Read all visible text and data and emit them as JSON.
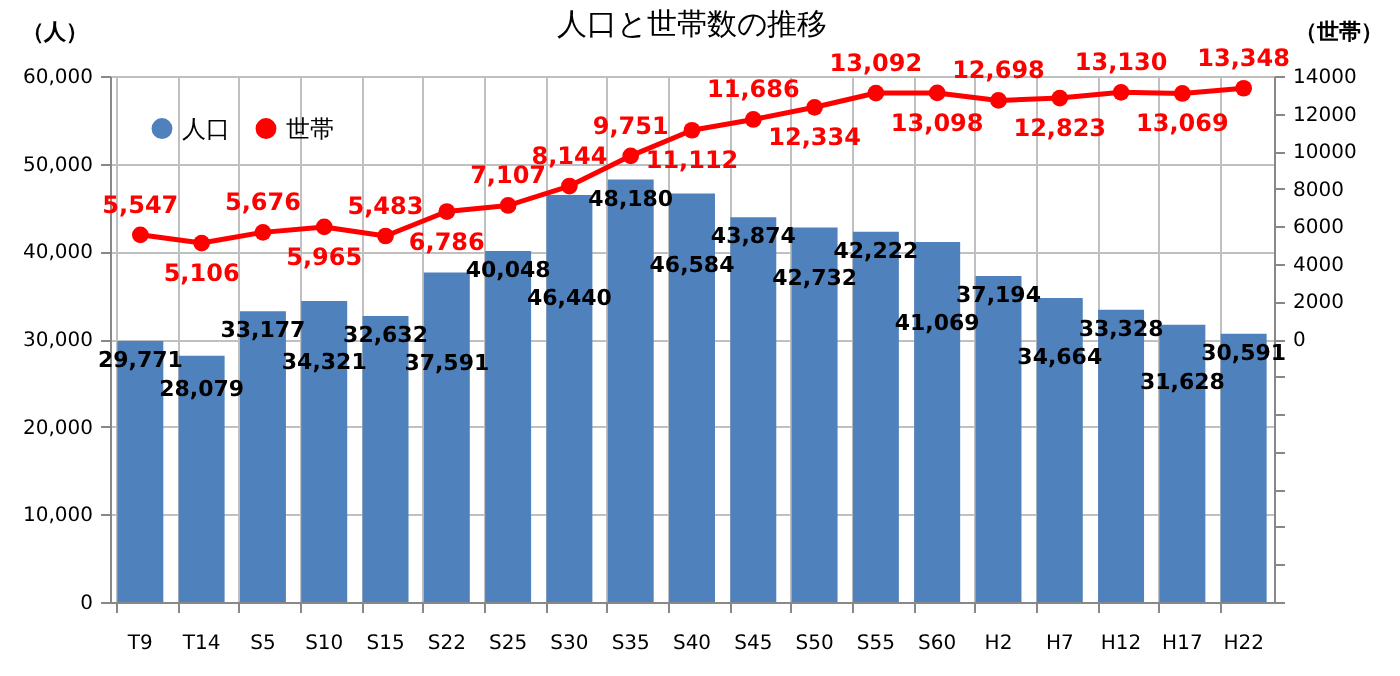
{
  "chart_data": {
    "type": "bar",
    "title": "人口と世帯数の推移",
    "ylabel": "（人）",
    "y2label": "（世帯）",
    "categories": [
      "T9",
      "T14",
      "S5",
      "S10",
      "S15",
      "S22",
      "S25",
      "S30",
      "S35",
      "S40",
      "S45",
      "S50",
      "S55",
      "S60",
      "H2",
      "H7",
      "H12",
      "H17",
      "H22"
    ],
    "series": [
      {
        "name": "人口",
        "color": "#4f81bd",
        "values": [
          29771,
          28079,
          33177,
          34321,
          32632,
          37591,
          40048,
          46440,
          48180,
          46584,
          43874,
          42732,
          42222,
          41069,
          37194,
          34664,
          33328,
          31628,
          30591
        ],
        "value_labels": [
          "29,771",
          "28,079",
          "33,177",
          "34,321",
          "32,632",
          "37,591",
          "40,048",
          "46,440",
          "48,180",
          "46,584",
          "43,874",
          "42,732",
          "42,222",
          "41,069",
          "37,194",
          "34,664",
          "33,328",
          "31,628",
          "30,591"
        ]
      },
      {
        "name": "世帯",
        "type": "line",
        "axis": "y2",
        "color": "#ff0000",
        "marker": "circle",
        "values": [
          5547,
          5106,
          5676,
          5965,
          5483,
          6786,
          7107,
          8144,
          9751,
          11112,
          11686,
          12334,
          13092,
          13098,
          12698,
          12823,
          13130,
          13069,
          13348
        ],
        "value_labels": [
          "5,547",
          "5,106",
          "5,676",
          "5,965",
          "5,483",
          "6,786",
          "7,107",
          "8,144",
          "9,751",
          "11,112",
          "11,686",
          "12,334",
          "13,092",
          "13,098",
          "12,698",
          "12,823",
          "13,130",
          "13,069",
          "13,348"
        ]
      }
    ],
    "ylim": [
      0,
      60000
    ],
    "yticks": [
      {
        "value": 0,
        "label": "0"
      },
      {
        "value": 10000,
        "label": "10,000"
      },
      {
        "value": 20000,
        "label": "20,000"
      },
      {
        "value": 30000,
        "label": "30,000"
      },
      {
        "value": 40000,
        "label": "40,000"
      },
      {
        "value": 50000,
        "label": "50,000"
      },
      {
        "value": 60000,
        "label": "60,000"
      }
    ],
    "y2lim": [
      -14000,
      14000
    ],
    "y2ticks": [
      {
        "value": -14000,
        "label": null
      },
      {
        "value": -12000,
        "label": null
      },
      {
        "value": -10000,
        "label": null
      },
      {
        "value": -8000,
        "label": null
      },
      {
        "value": -6000,
        "label": null
      },
      {
        "value": -4000,
        "label": null
      },
      {
        "value": -2000,
        "label": null
      },
      {
        "value": 0,
        "label": "0"
      },
      {
        "value": 2000,
        "label": "2000"
      },
      {
        "value": 4000,
        "label": "4000"
      },
      {
        "value": 6000,
        "label": "6000"
      },
      {
        "value": 8000,
        "label": "8000"
      },
      {
        "value": 10000,
        "label": "10000"
      },
      {
        "value": 12000,
        "label": "12000"
      },
      {
        "value": 14000,
        "label": "14000"
      }
    ],
    "grid": true,
    "legend": "top left"
  }
}
